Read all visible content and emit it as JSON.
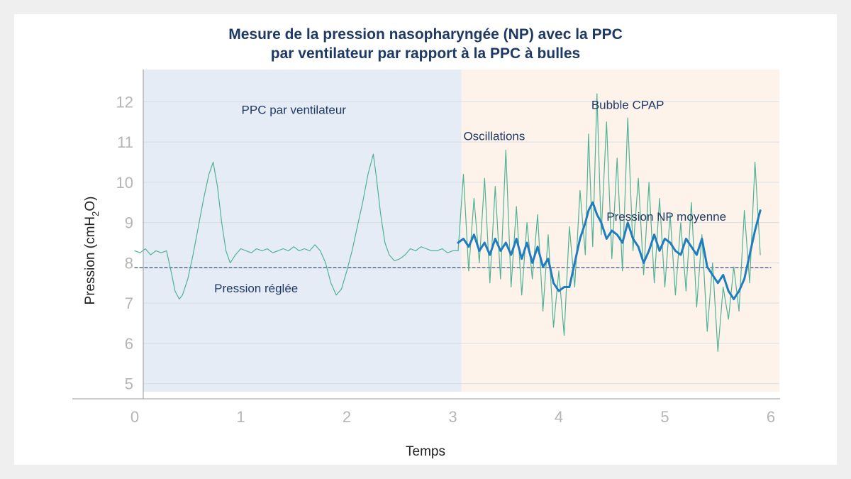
{
  "chart_data": {
    "type": "line",
    "title_lines": [
      "Mesure de la pression nasopharyngée (NP) avec la PPC",
      "par ventilateur par rapport à la PPC à bulles"
    ],
    "xlabel": "Temps",
    "ylabel": "Pression (cmH",
    "ylabel_sub": "2",
    "ylabel_end": "O)",
    "xlim": [
      0,
      6
    ],
    "ylim": [
      4.8,
      12.8
    ],
    "x_ticks": [
      "0",
      "1",
      "2",
      "3",
      "4",
      "5",
      "6"
    ],
    "y_ticks": [
      "5",
      "6",
      "7",
      "8",
      "9",
      "10",
      "11",
      "12"
    ],
    "grid": true,
    "set_pressure": 7.88,
    "regions": [
      {
        "name": "PPC par ventilateur",
        "x_start": 0,
        "x_end": 3.08,
        "color": "#e6ecf5"
      },
      {
        "name": "Bubble CPAP",
        "x_start": 3.08,
        "x_end": 6.08,
        "color": "#fdf3ea"
      }
    ],
    "annotations": [
      {
        "text": "PPC par ventilateur",
        "x": 1.5,
        "y": 11.7
      },
      {
        "text": "Bubble CPAP",
        "x": 4.65,
        "y": 11.82
      },
      {
        "text": "Oscillations",
        "x": 3.1,
        "y": 11.05
      },
      {
        "text": "Pression NP moyenne",
        "x": 4.45,
        "y": 9.05
      },
      {
        "text": "Pression réglée",
        "x": 0.75,
        "y": 7.27
      }
    ],
    "series": [
      {
        "name": "Pression réglée",
        "style": "dashed",
        "color": "#1e3a64",
        "x": [
          0,
          6
        ],
        "y": [
          7.88,
          7.88
        ]
      },
      {
        "name": "PPC par ventilateur",
        "color": "#4fb295",
        "x": [
          0,
          0.05,
          0.1,
          0.15,
          0.2,
          0.25,
          0.3,
          0.35,
          0.38,
          0.42,
          0.45,
          0.5,
          0.55,
          0.6,
          0.65,
          0.7,
          0.74,
          0.78,
          0.82,
          0.86,
          0.9,
          0.95,
          1.0,
          1.05,
          1.1,
          1.15,
          1.2,
          1.25,
          1.3,
          1.35,
          1.4,
          1.45,
          1.5,
          1.55,
          1.6,
          1.65,
          1.7,
          1.75,
          1.8,
          1.85,
          1.9,
          1.95,
          2.0,
          2.05,
          2.1,
          2.15,
          2.2,
          2.25,
          2.28,
          2.32,
          2.36,
          2.4,
          2.45,
          2.5,
          2.55,
          2.6,
          2.65,
          2.7,
          2.75,
          2.8,
          2.85,
          2.9,
          2.95,
          3.0,
          3.05
        ],
        "y": [
          8.3,
          8.25,
          8.35,
          8.2,
          8.3,
          8.25,
          8.3,
          7.7,
          7.3,
          7.1,
          7.2,
          7.6,
          8.2,
          8.9,
          9.6,
          10.2,
          10.5,
          9.9,
          9.0,
          8.3,
          8.0,
          8.2,
          8.35,
          8.3,
          8.25,
          8.35,
          8.3,
          8.35,
          8.25,
          8.3,
          8.35,
          8.3,
          8.4,
          8.3,
          8.35,
          8.3,
          8.45,
          8.3,
          8.0,
          7.5,
          7.2,
          7.35,
          7.8,
          8.3,
          8.9,
          9.5,
          10.2,
          10.7,
          10.1,
          9.2,
          8.5,
          8.2,
          8.05,
          8.1,
          8.2,
          8.35,
          8.3,
          8.4,
          8.35,
          8.3,
          8.3,
          8.35,
          8.25,
          8.3,
          8.3
        ]
      },
      {
        "name": "Oscillations",
        "color": "#4fb295",
        "x": [
          3.05,
          3.1,
          3.15,
          3.2,
          3.25,
          3.3,
          3.35,
          3.4,
          3.45,
          3.5,
          3.55,
          3.6,
          3.65,
          3.7,
          3.75,
          3.8,
          3.85,
          3.9,
          3.95,
          4.0,
          4.05,
          4.1,
          4.15,
          4.2,
          4.25,
          4.28,
          4.32,
          4.36,
          4.4,
          4.45,
          4.5,
          4.55,
          4.6,
          4.65,
          4.7,
          4.75,
          4.8,
          4.85,
          4.9,
          4.95,
          5.0,
          5.05,
          5.1,
          5.15,
          5.2,
          5.25,
          5.3,
          5.35,
          5.4,
          5.45,
          5.5,
          5.55,
          5.6,
          5.65,
          5.7,
          5.75,
          5.8,
          5.85,
          5.9
        ],
        "y": [
          8.3,
          10.2,
          7.8,
          9.6,
          8.0,
          10.1,
          7.5,
          9.9,
          7.6,
          10.8,
          7.4,
          9.4,
          7.2,
          9.0,
          7.6,
          9.2,
          6.8,
          8.7,
          6.4,
          7.8,
          6.2,
          8.9,
          7.4,
          9.8,
          8.2,
          11.2,
          8.4,
          12.2,
          8.7,
          11.5,
          8.1,
          10.6,
          7.8,
          11.6,
          8.3,
          10.1,
          7.7,
          10.0,
          7.5,
          9.6,
          7.4,
          9.2,
          7.2,
          9.0,
          7.3,
          9.5,
          6.9,
          8.7,
          6.3,
          8.0,
          5.8,
          7.4,
          6.6,
          7.9,
          6.8,
          9.3,
          7.5,
          10.5,
          8.2
        ]
      },
      {
        "name": "Pression NP moyenne",
        "color": "#1f7dbf",
        "x": [
          3.05,
          3.1,
          3.15,
          3.2,
          3.25,
          3.3,
          3.35,
          3.4,
          3.45,
          3.5,
          3.55,
          3.6,
          3.65,
          3.7,
          3.75,
          3.8,
          3.85,
          3.9,
          3.95,
          4.0,
          4.05,
          4.1,
          4.15,
          4.2,
          4.25,
          4.28,
          4.32,
          4.36,
          4.4,
          4.45,
          4.5,
          4.55,
          4.6,
          4.65,
          4.7,
          4.75,
          4.8,
          4.85,
          4.9,
          4.95,
          5.0,
          5.05,
          5.1,
          5.15,
          5.2,
          5.25,
          5.3,
          5.35,
          5.4,
          5.45,
          5.5,
          5.55,
          5.6,
          5.65,
          5.7,
          5.75,
          5.8,
          5.85,
          5.9
        ],
        "y": [
          8.5,
          8.6,
          8.4,
          8.7,
          8.3,
          8.5,
          8.2,
          8.6,
          8.3,
          8.5,
          8.2,
          8.6,
          8.1,
          8.5,
          8.0,
          8.4,
          7.9,
          8.1,
          7.5,
          7.3,
          7.4,
          7.4,
          8.0,
          8.6,
          9.0,
          9.3,
          9.5,
          9.2,
          9.0,
          8.6,
          8.8,
          8.7,
          8.5,
          9.0,
          8.6,
          8.4,
          8.0,
          8.3,
          8.7,
          8.3,
          8.6,
          8.5,
          8.3,
          8.2,
          8.6,
          8.4,
          8.2,
          8.6,
          7.9,
          7.7,
          7.5,
          7.7,
          7.3,
          7.1,
          7.3,
          7.6,
          8.2,
          8.8,
          9.3
        ]
      }
    ]
  }
}
